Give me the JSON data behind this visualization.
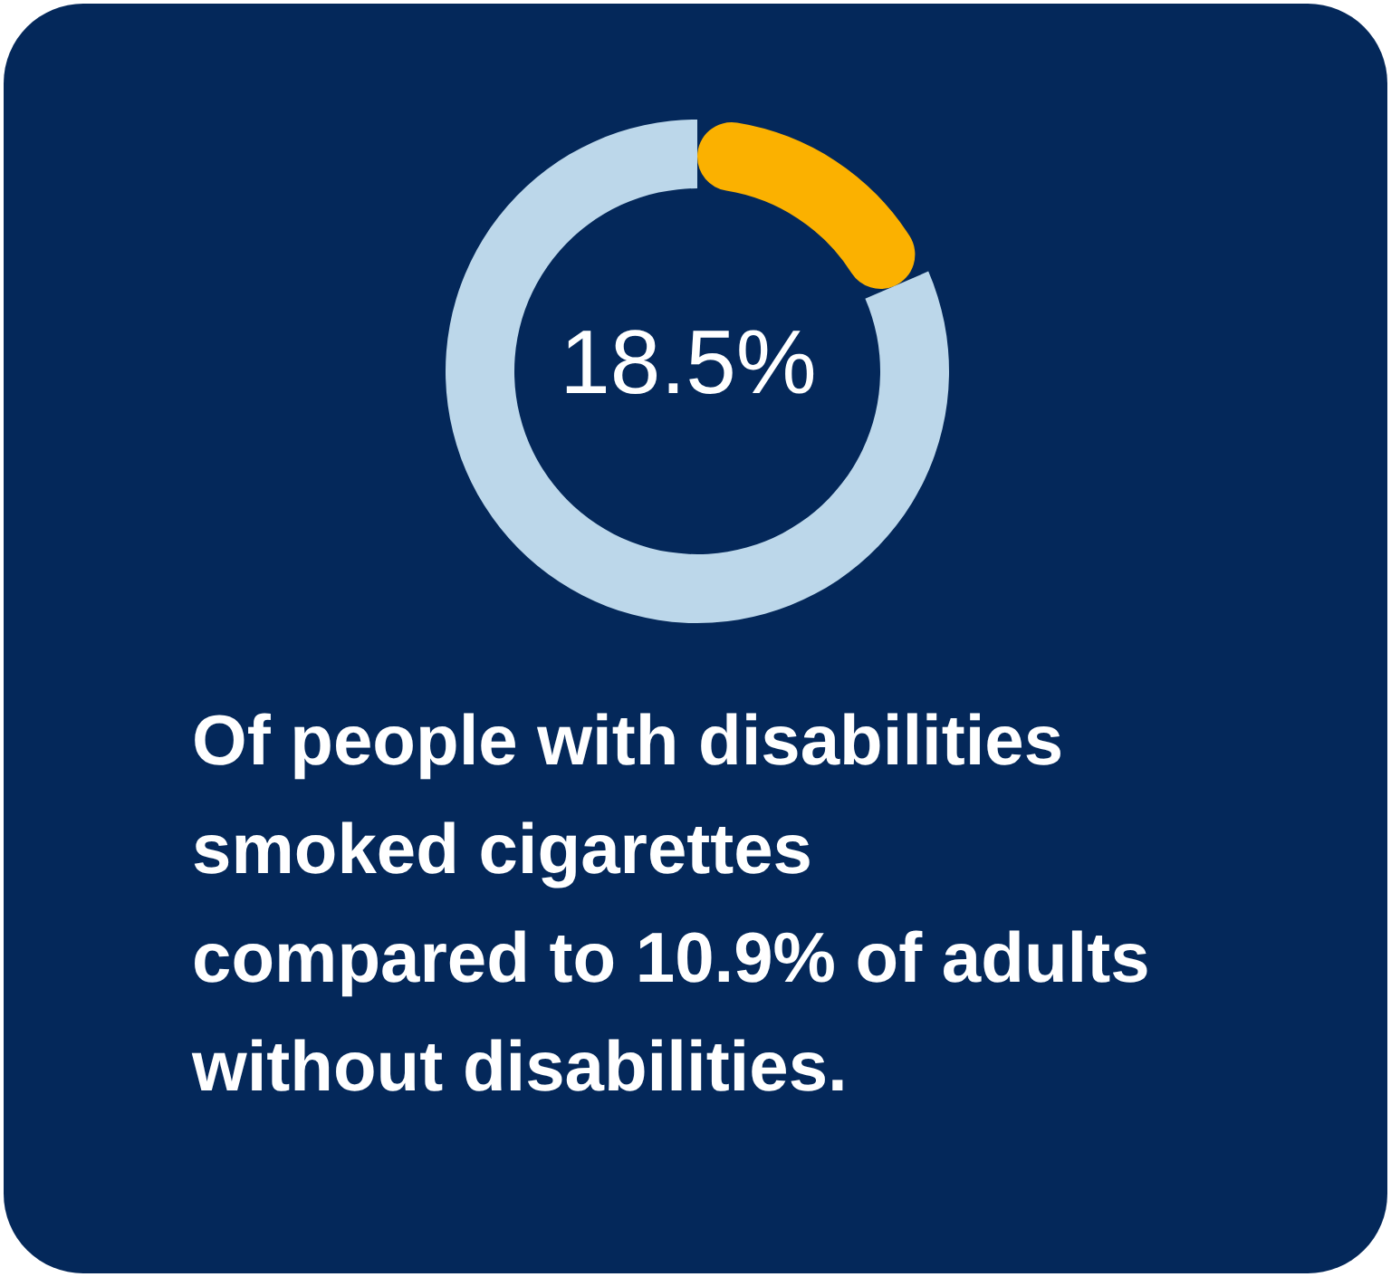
{
  "chart_data": {
    "type": "donut",
    "categories": [
      null,
      null
    ],
    "values": [
      18.5,
      81.5
    ],
    "colors": [
      "#fbb100",
      "#bcd7ea"
    ],
    "annotations": [
      "18.5%",
      "Of people with disabilities\nsmoked cigarettes\ncompared to 10.9% of adults\nwithout disabilities."
    ],
    "legend": false
  }
}
